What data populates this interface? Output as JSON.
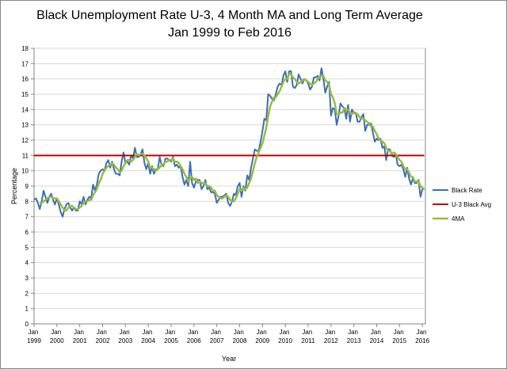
{
  "chart_data": {
    "type": "line",
    "title": "Black Unemployment Rate U-3, 4 Month MA and Long Term Average",
    "subtitle": "Jan 1999 to Feb 2016",
    "x_label": "Year",
    "y_label": "Percentage",
    "ylim": [
      0,
      18
    ],
    "yticks": [
      0,
      1,
      2,
      3,
      4,
      5,
      6,
      7,
      8,
      9,
      10,
      11,
      12,
      13,
      14,
      15,
      16,
      17,
      18
    ],
    "grid": true,
    "legend": "right",
    "categories": [
      "Jan 1999",
      null,
      null,
      null,
      null,
      null,
      null,
      null,
      null,
      null,
      null,
      null,
      "Jan 2000",
      null,
      null,
      null,
      null,
      null,
      null,
      null,
      null,
      null,
      null,
      null,
      "Jan 2001",
      null,
      null,
      null,
      null,
      null,
      null,
      null,
      null,
      null,
      null,
      null,
      "Jan 2002",
      null,
      null,
      null,
      null,
      null,
      null,
      null,
      null,
      null,
      null,
      null,
      "Jan 2003",
      null,
      null,
      null,
      null,
      null,
      null,
      null,
      null,
      null,
      null,
      null,
      "Jan 2004",
      null,
      null,
      null,
      null,
      null,
      null,
      null,
      null,
      null,
      null,
      null,
      "Jan 2005",
      null,
      null,
      null,
      null,
      null,
      null,
      null,
      null,
      null,
      null,
      null,
      "Jan 2006",
      null,
      null,
      null,
      null,
      null,
      null,
      null,
      null,
      null,
      null,
      null,
      "Jan 2007",
      null,
      null,
      null,
      null,
      null,
      null,
      null,
      null,
      null,
      null,
      null,
      "Jan 2008",
      null,
      null,
      null,
      null,
      null,
      null,
      null,
      null,
      null,
      null,
      null,
      "Jan 2009",
      null,
      null,
      null,
      null,
      null,
      null,
      null,
      null,
      null,
      null,
      null,
      "Jan 2010",
      null,
      null,
      null,
      null,
      null,
      null,
      null,
      null,
      null,
      null,
      null,
      "Jan 2011",
      null,
      null,
      null,
      null,
      null,
      null,
      null,
      null,
      null,
      null,
      null,
      "Jan 2012",
      null,
      null,
      null,
      null,
      null,
      null,
      null,
      null,
      null,
      null,
      null,
      "Jan 2013",
      null,
      null,
      null,
      null,
      null,
      null,
      null,
      null,
      null,
      null,
      null,
      "Jan 2014",
      null,
      null,
      null,
      null,
      null,
      null,
      null,
      null,
      null,
      null,
      null,
      "Jan 2015",
      null,
      null,
      null,
      null,
      null,
      null,
      null,
      null,
      null,
      null,
      null,
      "Jan 2016",
      null
    ],
    "series": [
      {
        "name": "Black Rate",
        "color": "#3b6fb6",
        "width": 2,
        "values": [
          8.1,
          8.2,
          7.9,
          7.5,
          8.0,
          8.7,
          8.3,
          7.9,
          8.3,
          8.5,
          8.1,
          7.8,
          8.2,
          7.8,
          7.3,
          7.0,
          7.5,
          7.8,
          7.9,
          7.6,
          7.4,
          7.6,
          7.4,
          7.4,
          8.0,
          7.8,
          8.3,
          7.8,
          8.1,
          8.3,
          8.2,
          9.1,
          8.7,
          9.1,
          9.8,
          10.0,
          10.1,
          10.0,
          10.5,
          10.7,
          10.2,
          10.6,
          10.1,
          9.8,
          9.8,
          9.7,
          10.6,
          11.2,
          10.5,
          10.6,
          10.4,
          11.0,
          10.8,
          11.5,
          10.9,
          10.9,
          11.1,
          11.4,
          10.5,
          10.1,
          10.5,
          9.8,
          10.3,
          9.8,
          10.1,
          10.1,
          10.9,
          10.4,
          10.3,
          10.8,
          10.8,
          10.7,
          10.6,
          10.9,
          10.3,
          10.4,
          10.2,
          10.3,
          9.6,
          9.1,
          9.4,
          9.0,
          10.6,
          9.2,
          8.9,
          9.3,
          9.4,
          9.4,
          8.8,
          9.0,
          9.4,
          8.8,
          8.9,
          8.6,
          8.6,
          8.5,
          7.9,
          8.1,
          8.3,
          8.3,
          8.4,
          8.5,
          7.9,
          7.7,
          8.0,
          8.5,
          8.4,
          9.0,
          9.2,
          8.3,
          9.0,
          8.7,
          9.7,
          9.4,
          10.2,
          10.8,
          11.4,
          11.3,
          11.3,
          11.9,
          12.6,
          13.4,
          13.3,
          15.0,
          14.9,
          14.7,
          14.6,
          15.0,
          15.5,
          15.7,
          15.6,
          16.2,
          16.5,
          15.8,
          16.5,
          16.5,
          15.5,
          15.4,
          15.6,
          16.3,
          16.0,
          15.7,
          16.0,
          15.9,
          15.7,
          15.3,
          15.5,
          16.1,
          16.1,
          16.2,
          15.9,
          16.7,
          16.0,
          15.1,
          15.5,
          15.8,
          13.6,
          14.1,
          14.0,
          13.0,
          13.6,
          14.4,
          14.2,
          14.1,
          13.4,
          14.3,
          13.2,
          14.0,
          13.8,
          13.8,
          13.2,
          13.2,
          13.5,
          13.7,
          12.6,
          13.0,
          13.0,
          13.1,
          12.5,
          11.9,
          12.1,
          12.0,
          12.1,
          11.5,
          11.6,
          10.7,
          11.4,
          11.4,
          11.0,
          10.9,
          11.1,
          10.4,
          10.3,
          10.4,
          10.1,
          9.6,
          10.2,
          9.5,
          9.1,
          9.5,
          9.2,
          9.2,
          9.4,
          8.3,
          8.8,
          8.8
        ]
      },
      {
        "name": "U-3 Black Avg",
        "color": "#c00000",
        "width": 2,
        "values": [
          11,
          11,
          11,
          11,
          11,
          11,
          11,
          11,
          11,
          11,
          11,
          11,
          11,
          11,
          11,
          11,
          11,
          11,
          11,
          11,
          11,
          11,
          11,
          11,
          11,
          11,
          11,
          11,
          11,
          11,
          11,
          11,
          11,
          11,
          11,
          11,
          11,
          11,
          11,
          11,
          11,
          11,
          11,
          11,
          11,
          11,
          11,
          11,
          11,
          11,
          11,
          11,
          11,
          11,
          11,
          11,
          11,
          11,
          11,
          11,
          11,
          11,
          11,
          11,
          11,
          11,
          11,
          11,
          11,
          11,
          11,
          11,
          11,
          11,
          11,
          11,
          11,
          11,
          11,
          11,
          11,
          11,
          11,
          11,
          11,
          11,
          11,
          11,
          11,
          11,
          11,
          11,
          11,
          11,
          11,
          11,
          11,
          11,
          11,
          11,
          11,
          11,
          11,
          11,
          11,
          11,
          11,
          11,
          11,
          11,
          11,
          11,
          11,
          11,
          11,
          11,
          11,
          11,
          11,
          11,
          11,
          11,
          11,
          11,
          11,
          11,
          11,
          11,
          11,
          11,
          11,
          11,
          11,
          11,
          11,
          11,
          11,
          11,
          11,
          11,
          11,
          11,
          11,
          11,
          11,
          11,
          11,
          11,
          11,
          11,
          11,
          11,
          11,
          11,
          11,
          11,
          11,
          11,
          11,
          11,
          11,
          11,
          11,
          11,
          11,
          11,
          11,
          11,
          11,
          11,
          11,
          11,
          11,
          11,
          11,
          11,
          11,
          11,
          11,
          11,
          11,
          11,
          11,
          11,
          11,
          11,
          11,
          11,
          11,
          11,
          11,
          11,
          11,
          11,
          11,
          11,
          11,
          11,
          11,
          11,
          11,
          11,
          11,
          11,
          11,
          11
        ]
      },
      {
        "name": "4MA",
        "color": "#9bbb3b",
        "width": 2.5,
        "values": [
          null,
          null,
          null,
          7.9,
          7.9,
          8.0,
          8.1,
          8.2,
          8.3,
          8.3,
          8.2,
          8.2,
          8.2,
          8.0,
          7.8,
          7.6,
          7.4,
          7.4,
          7.6,
          7.7,
          7.7,
          7.6,
          7.5,
          7.5,
          7.6,
          7.7,
          7.9,
          8.0,
          8.0,
          8.1,
          8.1,
          8.4,
          8.6,
          8.8,
          9.2,
          9.4,
          9.8,
          10.0,
          10.2,
          10.3,
          10.4,
          10.5,
          10.4,
          10.2,
          10.1,
          9.9,
          10.0,
          10.3,
          10.5,
          10.7,
          10.7,
          10.6,
          10.7,
          10.9,
          11.1,
          11.0,
          11.1,
          11.1,
          11.0,
          10.8,
          10.6,
          10.2,
          10.2,
          10.1,
          10.0,
          10.1,
          10.2,
          10.4,
          10.4,
          10.6,
          10.6,
          10.7,
          10.7,
          10.8,
          10.6,
          10.6,
          10.5,
          10.3,
          10.1,
          9.8,
          9.6,
          9.3,
          9.5,
          9.6,
          9.4,
          9.5,
          9.2,
          9.3,
          9.2,
          9.2,
          9.2,
          9.0,
          9.0,
          8.9,
          8.7,
          8.7,
          8.4,
          8.3,
          8.2,
          8.2,
          8.3,
          8.4,
          8.3,
          8.1,
          8.0,
          8.0,
          8.2,
          8.5,
          8.8,
          8.7,
          8.9,
          8.8,
          8.9,
          9.2,
          9.5,
          10.0,
          10.5,
          10.9,
          11.2,
          11.5,
          11.8,
          12.3,
          12.8,
          13.6,
          14.2,
          14.5,
          14.8,
          14.8,
          15.0,
          15.2,
          15.5,
          15.8,
          16.0,
          16.0,
          16.3,
          16.3,
          16.1,
          16.0,
          15.8,
          15.7,
          15.8,
          15.9,
          16.0,
          15.9,
          15.8,
          15.7,
          15.6,
          15.7,
          15.8,
          16.0,
          16.1,
          16.2,
          16.2,
          15.9,
          15.8,
          15.6,
          15.0,
          14.8,
          14.4,
          13.7,
          13.7,
          13.8,
          13.8,
          14.1,
          14.0,
          14.0,
          13.8,
          13.7,
          13.8,
          13.7,
          13.7,
          13.5,
          13.4,
          13.4,
          13.3,
          13.2,
          13.1,
          12.9,
          12.9,
          12.6,
          12.4,
          12.1,
          12.0,
          11.9,
          11.8,
          11.5,
          11.3,
          11.3,
          11.1,
          11.2,
          11.1,
          10.9,
          10.7,
          10.6,
          10.3,
          10.1,
          10.1,
          9.9,
          9.6,
          9.6,
          9.3,
          9.3,
          9.3,
          9.0,
          8.9,
          8.8
        ]
      }
    ]
  }
}
